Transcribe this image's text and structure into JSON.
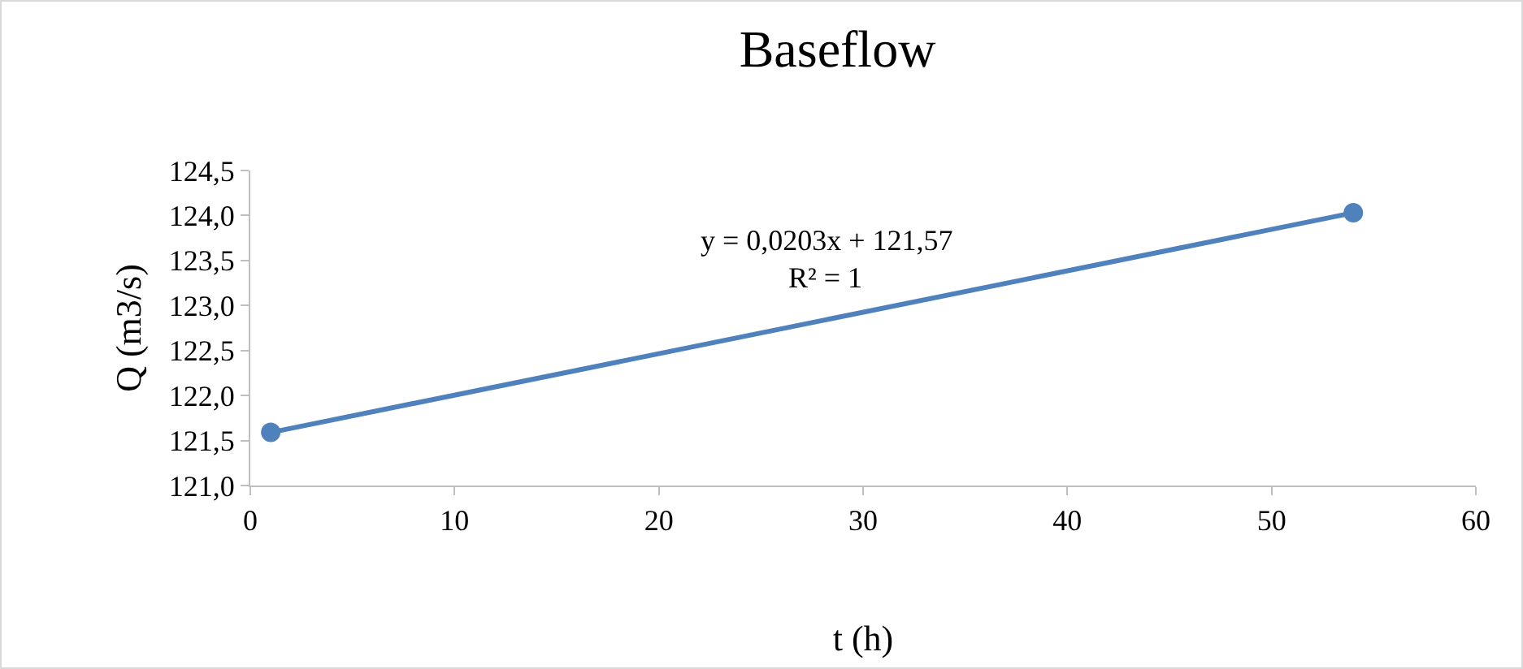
{
  "chart_data": {
    "type": "line",
    "title": "Baseflow",
    "xlabel": "t (h)",
    "ylabel": "Q (m3/s)",
    "x": [
      1,
      54
    ],
    "series": [
      {
        "color": "#4f81bd",
        "values": [
          121.59,
          124.03
        ]
      }
    ],
    "xlim": [
      0,
      60
    ],
    "xticks": [
      0,
      10,
      20,
      30,
      40,
      50,
      60
    ],
    "ylim": [
      121.0,
      124.5
    ],
    "yticks": [
      {
        "value": 121.0,
        "label": "121,0"
      },
      {
        "value": 121.5,
        "label": "121,5"
      },
      {
        "value": 122.0,
        "label": "122,0"
      },
      {
        "value": 122.5,
        "label": "122,5"
      },
      {
        "value": 123.0,
        "label": "123,0"
      },
      {
        "value": 123.5,
        "label": "123,5"
      },
      {
        "value": 124.0,
        "label": "124,0"
      },
      {
        "value": 124.5,
        "label": "124,5"
      }
    ],
    "annotations": [
      "y = 0,0203x + 121,57",
      "R² = 1"
    ],
    "grid": false,
    "marker": "circle",
    "line_style": "solid"
  }
}
